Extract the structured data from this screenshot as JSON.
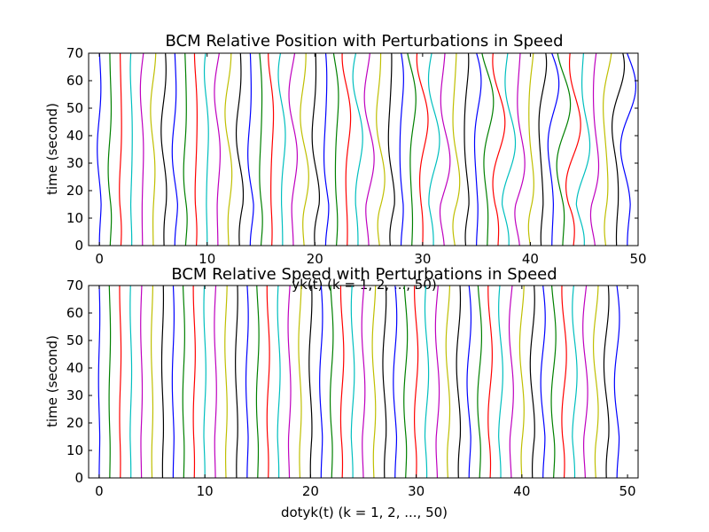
{
  "chart_data": [
    {
      "type": "line",
      "title": "BCM Relative Position with Perturbations in Speed",
      "xlabel": "yk(t) (k = 1, 2, ..., 50)",
      "ylabel": "time (second)",
      "xlim": [
        -1,
        50
      ],
      "ylim": [
        0,
        70
      ],
      "xticks": [
        "0",
        "10",
        "20",
        "30",
        "40",
        "50"
      ],
      "yticks": [
        "0",
        "10",
        "20",
        "30",
        "40",
        "50",
        "60",
        "70"
      ],
      "grid": false,
      "legend": "none",
      "series_count": 50,
      "series_baselines": [
        0,
        1,
        2,
        3,
        4,
        5,
        6,
        7,
        8,
        9,
        10,
        11,
        12,
        13,
        14,
        15,
        16,
        17,
        18,
        19,
        20,
        21,
        22,
        23,
        24,
        25,
        26,
        27,
        28,
        29,
        30,
        31,
        32,
        33,
        34,
        35,
        36,
        37,
        38,
        39,
        40,
        41,
        42,
        43,
        44,
        45,
        46,
        47,
        48,
        49
      ],
      "series_colors": [
        "#0000ff",
        "#008000",
        "#ff0000",
        "#00bfbf",
        "#bf00bf",
        "#bfbf00",
        "#000000"
      ],
      "perturbation_amplitude": 0.8
    },
    {
      "type": "line",
      "title": "BCM Relative Speed with Perturbations in Speed",
      "xlabel": "dotyk(t) (k = 1, 2, ..., 50)",
      "ylabel": "time (second)",
      "xlim": [
        -1,
        51
      ],
      "ylim": [
        0,
        70
      ],
      "xticks": [
        "0",
        "10",
        "20",
        "30",
        "40",
        "50"
      ],
      "yticks": [
        "0",
        "10",
        "20",
        "30",
        "40",
        "50",
        "60",
        "70"
      ],
      "grid": false,
      "legend": "none",
      "series_count": 50,
      "series_baselines": [
        0,
        1,
        2,
        3,
        4,
        5,
        6,
        7,
        8,
        9,
        10,
        11,
        12,
        13,
        14,
        15,
        16,
        17,
        18,
        19,
        20,
        21,
        22,
        23,
        24,
        25,
        26,
        27,
        28,
        29,
        30,
        31,
        32,
        33,
        34,
        35,
        36,
        37,
        38,
        39,
        40,
        41,
        42,
        43,
        44,
        45,
        46,
        47,
        48,
        49
      ],
      "series_colors": [
        "#0000ff",
        "#008000",
        "#ff0000",
        "#00bfbf",
        "#bf00bf",
        "#bfbf00",
        "#000000"
      ],
      "perturbation_amplitude": 0.3
    }
  ]
}
